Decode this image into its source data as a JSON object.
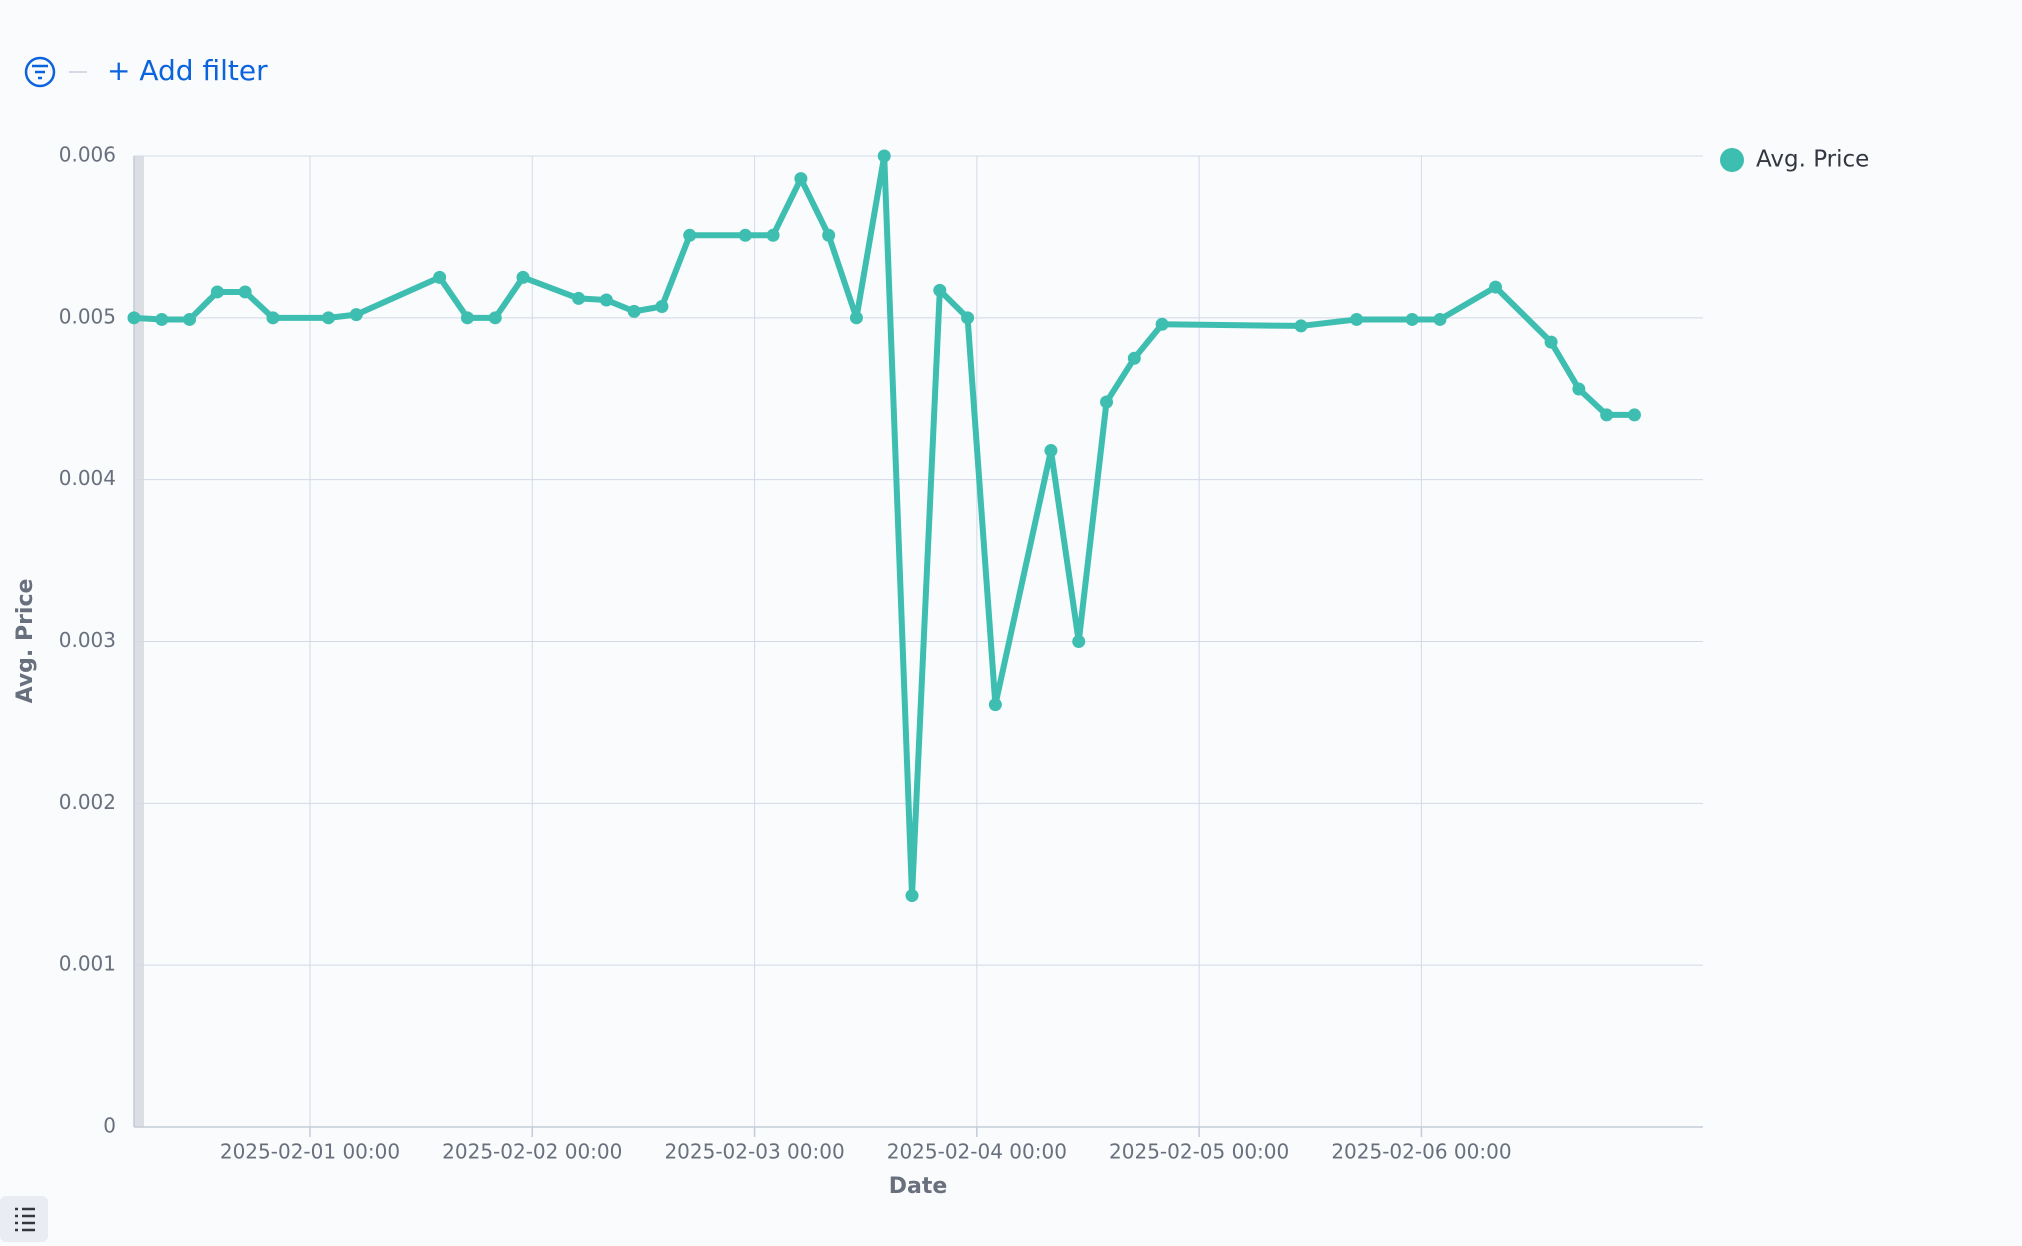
{
  "toolbar": {
    "add_filter": "+ Add filter"
  },
  "chart_data": {
    "type": "line",
    "xlabel": "Date",
    "ylabel": "Avg. Price",
    "x": [
      "2025-01-31 05:00",
      "2025-01-31 08:00",
      "2025-01-31 11:00",
      "2025-01-31 14:00",
      "2025-01-31 17:00",
      "2025-01-31 20:00",
      "2025-02-01 02:00",
      "2025-02-01 05:00",
      "2025-02-01 14:00",
      "2025-02-01 17:00",
      "2025-02-01 20:00",
      "2025-02-01 23:00",
      "2025-02-02 05:00",
      "2025-02-02 08:00",
      "2025-02-02 11:00",
      "2025-02-02 14:00",
      "2025-02-02 17:00",
      "2025-02-02 23:00",
      "2025-02-03 02:00",
      "2025-02-03 05:00",
      "2025-02-03 08:00",
      "2025-02-03 11:00",
      "2025-02-03 14:00",
      "2025-02-03 17:00",
      "2025-02-03 20:00",
      "2025-02-03 23:00",
      "2025-02-04 02:00",
      "2025-02-04 08:00",
      "2025-02-04 11:00",
      "2025-02-04 14:00",
      "2025-02-04 17:00",
      "2025-02-04 20:00",
      "2025-02-05 11:00",
      "2025-02-05 17:00",
      "2025-02-05 23:00",
      "2025-02-06 02:00",
      "2025-02-06 08:00",
      "2025-02-06 14:00",
      "2025-02-06 17:00",
      "2025-02-06 20:00",
      "2025-02-06 23:00"
    ],
    "series": [
      {
        "name": "Avg. Price",
        "color": "#3ebeb0",
        "values": [
          0.005,
          0.00499,
          0.00499,
          0.00516,
          0.00516,
          0.005,
          0.005,
          0.00502,
          0.00525,
          0.005,
          0.005,
          0.00525,
          0.00512,
          0.00511,
          0.00504,
          0.00507,
          0.00551,
          0.00551,
          0.00551,
          0.00586,
          0.00551,
          0.005,
          0.006,
          0.00143,
          0.00517,
          0.005,
          0.00261,
          0.00418,
          0.003,
          0.00448,
          0.00475,
          0.00496,
          0.00495,
          0.00499,
          0.00499,
          0.00499,
          0.00519,
          0.00485,
          0.00456,
          0.0044,
          0.0044
        ]
      }
    ],
    "xlim": [
      "2025-01-31 05:00",
      "2025-02-07 06:24"
    ],
    "xticks": [
      "2025-02-01 00:00",
      "2025-02-02 00:00",
      "2025-02-03 00:00",
      "2025-02-04 00:00",
      "2025-02-05 00:00",
      "2025-02-06 00:00"
    ],
    "ylim": [
      0,
      0.006
    ],
    "yticks": [
      0,
      0.001,
      0.002,
      0.003,
      0.004,
      0.005,
      0.006
    ],
    "grid": true,
    "legend": "right"
  }
}
